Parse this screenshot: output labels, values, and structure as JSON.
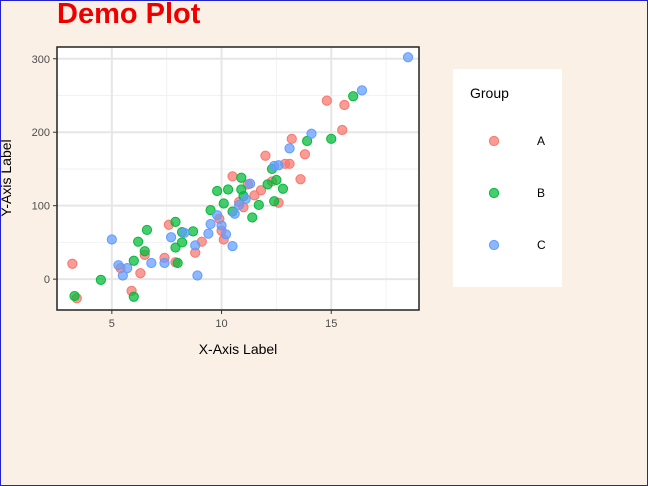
{
  "chart_data": {
    "type": "scatter",
    "title": "Demo Plot",
    "xlabel": "X-Axis Label",
    "ylabel": "Y-Axis Label",
    "xlim": [
      2.5,
      19
    ],
    "ylim": [
      -42,
      316
    ],
    "xticks": [
      5,
      10,
      15
    ],
    "yticks": [
      0,
      100,
      200,
      300
    ],
    "grid": true,
    "legend": {
      "title": "Group",
      "position": "right"
    },
    "series": [
      {
        "name": "A",
        "color": "#F8766D",
        "points": [
          [
            3.2,
            21
          ],
          [
            3.4,
            -26
          ],
          [
            5.4,
            15
          ],
          [
            5.9,
            -16
          ],
          [
            6.3,
            8
          ],
          [
            6.5,
            33
          ],
          [
            7.4,
            29
          ],
          [
            7.6,
            74
          ],
          [
            7.9,
            23
          ],
          [
            8.8,
            36
          ],
          [
            9.1,
            51
          ],
          [
            9.9,
            82
          ],
          [
            10.0,
            66
          ],
          [
            10.1,
            54
          ],
          [
            10.5,
            140
          ],
          [
            10.8,
            105
          ],
          [
            11.0,
            98
          ],
          [
            11.2,
            129
          ],
          [
            11.5,
            114
          ],
          [
            11.8,
            121
          ],
          [
            12.0,
            168
          ],
          [
            12.3,
            133
          ],
          [
            12.6,
            104
          ],
          [
            12.9,
            157
          ],
          [
            13.1,
            157
          ],
          [
            13.2,
            191
          ],
          [
            13.6,
            136
          ],
          [
            13.8,
            170
          ],
          [
            14.8,
            243
          ],
          [
            15.5,
            203
          ],
          [
            15.6,
            237
          ]
        ]
      },
      {
        "name": "B",
        "color": "#00BA38",
        "points": [
          [
            3.3,
            -23
          ],
          [
            4.5,
            -1
          ],
          [
            6.0,
            -24
          ],
          [
            6.0,
            25
          ],
          [
            6.2,
            51
          ],
          [
            6.5,
            38
          ],
          [
            6.6,
            67
          ],
          [
            7.9,
            43
          ],
          [
            7.9,
            78
          ],
          [
            8.0,
            22
          ],
          [
            8.2,
            64
          ],
          [
            8.2,
            50
          ],
          [
            8.7,
            65
          ],
          [
            9.5,
            94
          ],
          [
            9.8,
            120
          ],
          [
            10.1,
            103
          ],
          [
            10.3,
            122
          ],
          [
            10.5,
            92
          ],
          [
            10.9,
            138
          ],
          [
            10.9,
            122
          ],
          [
            11.0,
            113
          ],
          [
            11.4,
            84
          ],
          [
            11.7,
            101
          ],
          [
            12.1,
            129
          ],
          [
            12.3,
            150
          ],
          [
            12.4,
            106
          ],
          [
            12.5,
            135
          ],
          [
            12.8,
            123
          ],
          [
            13.9,
            188
          ],
          [
            15.0,
            191
          ],
          [
            16.0,
            249
          ]
        ]
      },
      {
        "name": "C",
        "color": "#619CFF",
        "points": [
          [
            5.0,
            54
          ],
          [
            5.3,
            19
          ],
          [
            5.5,
            5
          ],
          [
            5.7,
            15
          ],
          [
            6.8,
            22
          ],
          [
            7.4,
            22
          ],
          [
            7.7,
            57
          ],
          [
            8.3,
            63
          ],
          [
            8.8,
            46
          ],
          [
            8.9,
            5
          ],
          [
            9.4,
            62
          ],
          [
            9.5,
            75
          ],
          [
            9.8,
            87
          ],
          [
            10.0,
            73
          ],
          [
            10.2,
            61
          ],
          [
            10.5,
            45
          ],
          [
            10.6,
            89
          ],
          [
            10.8,
            101
          ],
          [
            11.1,
            109
          ],
          [
            11.3,
            130
          ],
          [
            12.4,
            154
          ],
          [
            12.6,
            155
          ],
          [
            13.1,
            178
          ],
          [
            14.1,
            198
          ],
          [
            16.4,
            257
          ],
          [
            18.5,
            302
          ]
        ]
      }
    ]
  }
}
